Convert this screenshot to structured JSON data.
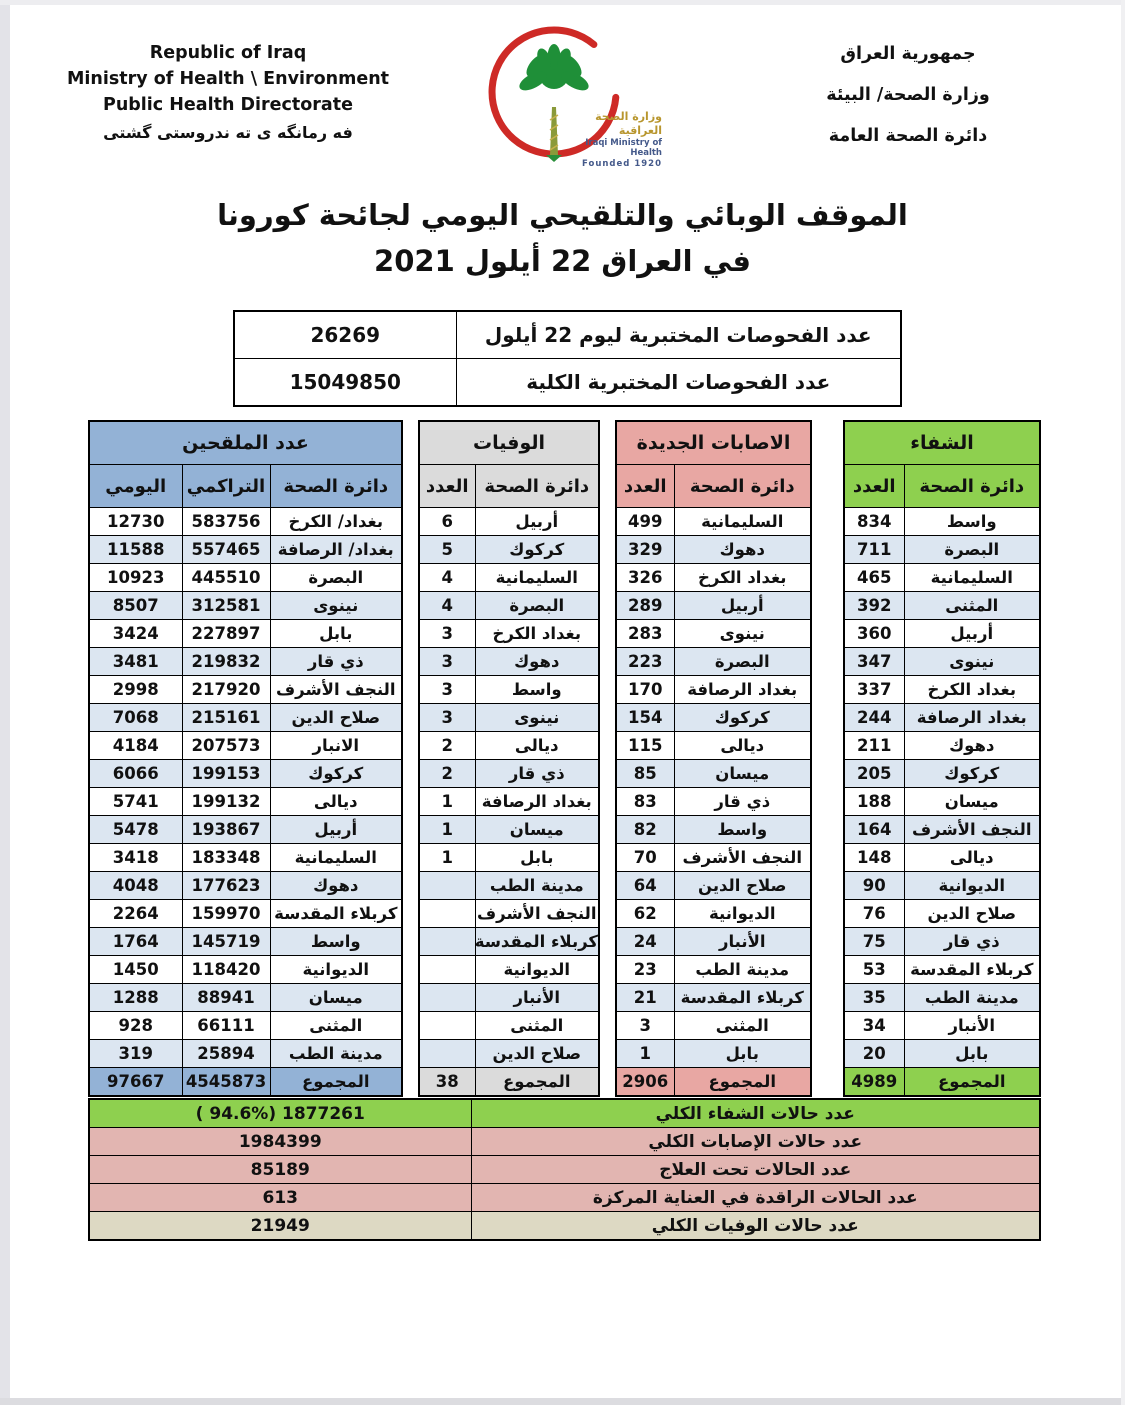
{
  "header": {
    "english": [
      "Republic of Iraq",
      "Ministry of Health \\ Environment",
      "Public Health Directorate"
    ],
    "kurdish": "فه رمانگه ی ته ندروستی گشتی",
    "arabic": [
      "جمهورية العراق",
      "وزارة الصحة/ البيئة",
      "دائرة الصحة العامة"
    ],
    "logo": {
      "arabic": "وزارة الصحة العراقية",
      "english": "Iraqi Ministry of Health",
      "founded": "Founded 1920"
    }
  },
  "title": {
    "line1": "الموقف الوبائي والتلقيحي اليومي لجائحة كورونا",
    "line2": "في العراق  22  أيلول 2021"
  },
  "tests": {
    "rows": [
      {
        "label": "عدد الفحوصات المختبرية  ليوم 22 أيلول",
        "value": "26269"
      },
      {
        "label": "عدد الفحوصات المختبرية الكلية",
        "value": "15049850"
      }
    ]
  },
  "colors": {
    "blue_header": "#93b2d6",
    "band_blue": "#dce6f1",
    "gray_header": "#dbdbdb",
    "pink_header": "#e8a7a3",
    "green_header": "#8ed04f",
    "summary_pink": "#e2b5b1",
    "summary_beige": "#ddd9c3"
  },
  "tables": {
    "vaccinated": {
      "title": "عدد الملقحين",
      "cols": {
        "daily": "اليومي",
        "cumulative": "التراكمي",
        "name": "دائرة الصحة"
      },
      "rows": [
        {
          "name": "بغداد/ الكرخ",
          "cumulative": "583756",
          "daily": "12730"
        },
        {
          "name": "بغداد/ الرصافة",
          "cumulative": "557465",
          "daily": "11588"
        },
        {
          "name": "البصرة",
          "cumulative": "445510",
          "daily": "10923"
        },
        {
          "name": "نينوى",
          "cumulative": "312581",
          "daily": "8507"
        },
        {
          "name": "بابل",
          "cumulative": "227897",
          "daily": "3424"
        },
        {
          "name": "ذي قار",
          "cumulative": "219832",
          "daily": "3481"
        },
        {
          "name": "النجف الأشرف",
          "cumulative": "217920",
          "daily": "2998"
        },
        {
          "name": "صلاح الدين",
          "cumulative": "215161",
          "daily": "7068"
        },
        {
          "name": "الانبار",
          "cumulative": "207573",
          "daily": "4184"
        },
        {
          "name": "كركوك",
          "cumulative": "199153",
          "daily": "6066"
        },
        {
          "name": "ديالى",
          "cumulative": "199132",
          "daily": "5741"
        },
        {
          "name": "أربيل",
          "cumulative": "193867",
          "daily": "5478"
        },
        {
          "name": "السليمانية",
          "cumulative": "183348",
          "daily": "3418"
        },
        {
          "name": "دهوك",
          "cumulative": "177623",
          "daily": "4048"
        },
        {
          "name": "كربلاء المقدسة",
          "cumulative": "159970",
          "daily": "2264"
        },
        {
          "name": "واسط",
          "cumulative": "145719",
          "daily": "1764"
        },
        {
          "name": "الديوانية",
          "cumulative": "118420",
          "daily": "1450"
        },
        {
          "name": "ميسان",
          "cumulative": "88941",
          "daily": "1288"
        },
        {
          "name": "المثنى",
          "cumulative": "66111",
          "daily": "928"
        },
        {
          "name": "مدينة الطب",
          "cumulative": "25894",
          "daily": "319"
        }
      ],
      "total": {
        "name": "المجموع",
        "cumulative": "4545873",
        "daily": "97667"
      }
    },
    "deaths": {
      "title": "الوفيات",
      "cols": {
        "value": "العدد",
        "name": "دائرة الصحة"
      },
      "rows": [
        {
          "name": "أربيل",
          "value": "6"
        },
        {
          "name": "كركوك",
          "value": "5"
        },
        {
          "name": "السليمانية",
          "value": "4"
        },
        {
          "name": "البصرة",
          "value": "4"
        },
        {
          "name": "بغداد الكرخ",
          "value": "3"
        },
        {
          "name": "دهوك",
          "value": "3"
        },
        {
          "name": "واسط",
          "value": "3"
        },
        {
          "name": "نينوى",
          "value": "3"
        },
        {
          "name": "ديالى",
          "value": "2"
        },
        {
          "name": "ذي قار",
          "value": "2"
        },
        {
          "name": "بغداد الرصافة",
          "value": "1"
        },
        {
          "name": "ميسان",
          "value": "1"
        },
        {
          "name": "بابل",
          "value": "1"
        },
        {
          "name": "مدينة الطب",
          "value": ""
        },
        {
          "name": "النجف الأشرف",
          "value": ""
        },
        {
          "name": "كربلاء المقدسة",
          "value": ""
        },
        {
          "name": "الديوانية",
          "value": ""
        },
        {
          "name": "الأنبار",
          "value": ""
        },
        {
          "name": "المثنى",
          "value": ""
        },
        {
          "name": "صلاح الدين",
          "value": ""
        }
      ],
      "total": {
        "name": "المجموع",
        "value": "38"
      }
    },
    "infections": {
      "title": "الاصابات الجديدة",
      "cols": {
        "value": "العدد",
        "name": "دائرة الصحة"
      },
      "rows": [
        {
          "name": "السليمانية",
          "value": "499"
        },
        {
          "name": "دهوك",
          "value": "329"
        },
        {
          "name": "بغداد الكرخ",
          "value": "326"
        },
        {
          "name": "أربيل",
          "value": "289"
        },
        {
          "name": "نينوى",
          "value": "283"
        },
        {
          "name": "البصرة",
          "value": "223"
        },
        {
          "name": "بغداد الرصافة",
          "value": "170"
        },
        {
          "name": "كركوك",
          "value": "154"
        },
        {
          "name": "ديالى",
          "value": "115"
        },
        {
          "name": "ميسان",
          "value": "85"
        },
        {
          "name": "ذي قار",
          "value": "83"
        },
        {
          "name": "واسط",
          "value": "82"
        },
        {
          "name": "النجف الأشرف",
          "value": "70"
        },
        {
          "name": "صلاح الدين",
          "value": "64"
        },
        {
          "name": "الديوانية",
          "value": "62"
        },
        {
          "name": "الأنبار",
          "value": "24"
        },
        {
          "name": "مدينة الطب",
          "value": "23"
        },
        {
          "name": "كربلاء المقدسة",
          "value": "21"
        },
        {
          "name": "المثنى",
          "value": "3"
        },
        {
          "name": "بابل",
          "value": "1"
        }
      ],
      "total": {
        "name": "المجموع",
        "value": "2906"
      }
    },
    "recovery": {
      "title": "الشفاء",
      "cols": {
        "value": "العدد",
        "name": "دائرة الصحة"
      },
      "rows": [
        {
          "name": "واسط",
          "value": "834"
        },
        {
          "name": "البصرة",
          "value": "711"
        },
        {
          "name": "السليمانية",
          "value": "465"
        },
        {
          "name": "المثنى",
          "value": "392"
        },
        {
          "name": "أربيل",
          "value": "360"
        },
        {
          "name": "نينوى",
          "value": "347"
        },
        {
          "name": "بغداد الكرخ",
          "value": "337"
        },
        {
          "name": "بغداد الرصافة",
          "value": "244"
        },
        {
          "name": "دهوك",
          "value": "211"
        },
        {
          "name": "كركوك",
          "value": "205"
        },
        {
          "name": "ميسان",
          "value": "188"
        },
        {
          "name": "النجف الأشرف",
          "value": "164"
        },
        {
          "name": "ديالى",
          "value": "148"
        },
        {
          "name": "الديوانية",
          "value": "90"
        },
        {
          "name": "صلاح الدين",
          "value": "76"
        },
        {
          "name": "ذي قار",
          "value": "75"
        },
        {
          "name": "كربلاء المقدسة",
          "value": "53"
        },
        {
          "name": "مدينة الطب",
          "value": "35"
        },
        {
          "name": "الأنبار",
          "value": "34"
        },
        {
          "name": "بابل",
          "value": "20"
        }
      ],
      "total": {
        "name": "المجموع",
        "value": "4989"
      }
    }
  },
  "summary": [
    {
      "label": "عدد حالات الشفاء الكلي",
      "value": "( 94.6%)  1877261",
      "color": "green"
    },
    {
      "label": "عدد حالات الإصابات الكلي",
      "value": "1984399",
      "color": "pink"
    },
    {
      "label": "عدد الحالات تحت العلاج",
      "value": "85189",
      "color": "pink"
    },
    {
      "label": "عدد الحالات الراقدة في العناية المركزة",
      "value": "613",
      "color": "pink"
    },
    {
      "label": "عدد حالات الوفيات الكلي",
      "value": "21949",
      "color": "beige"
    }
  ]
}
